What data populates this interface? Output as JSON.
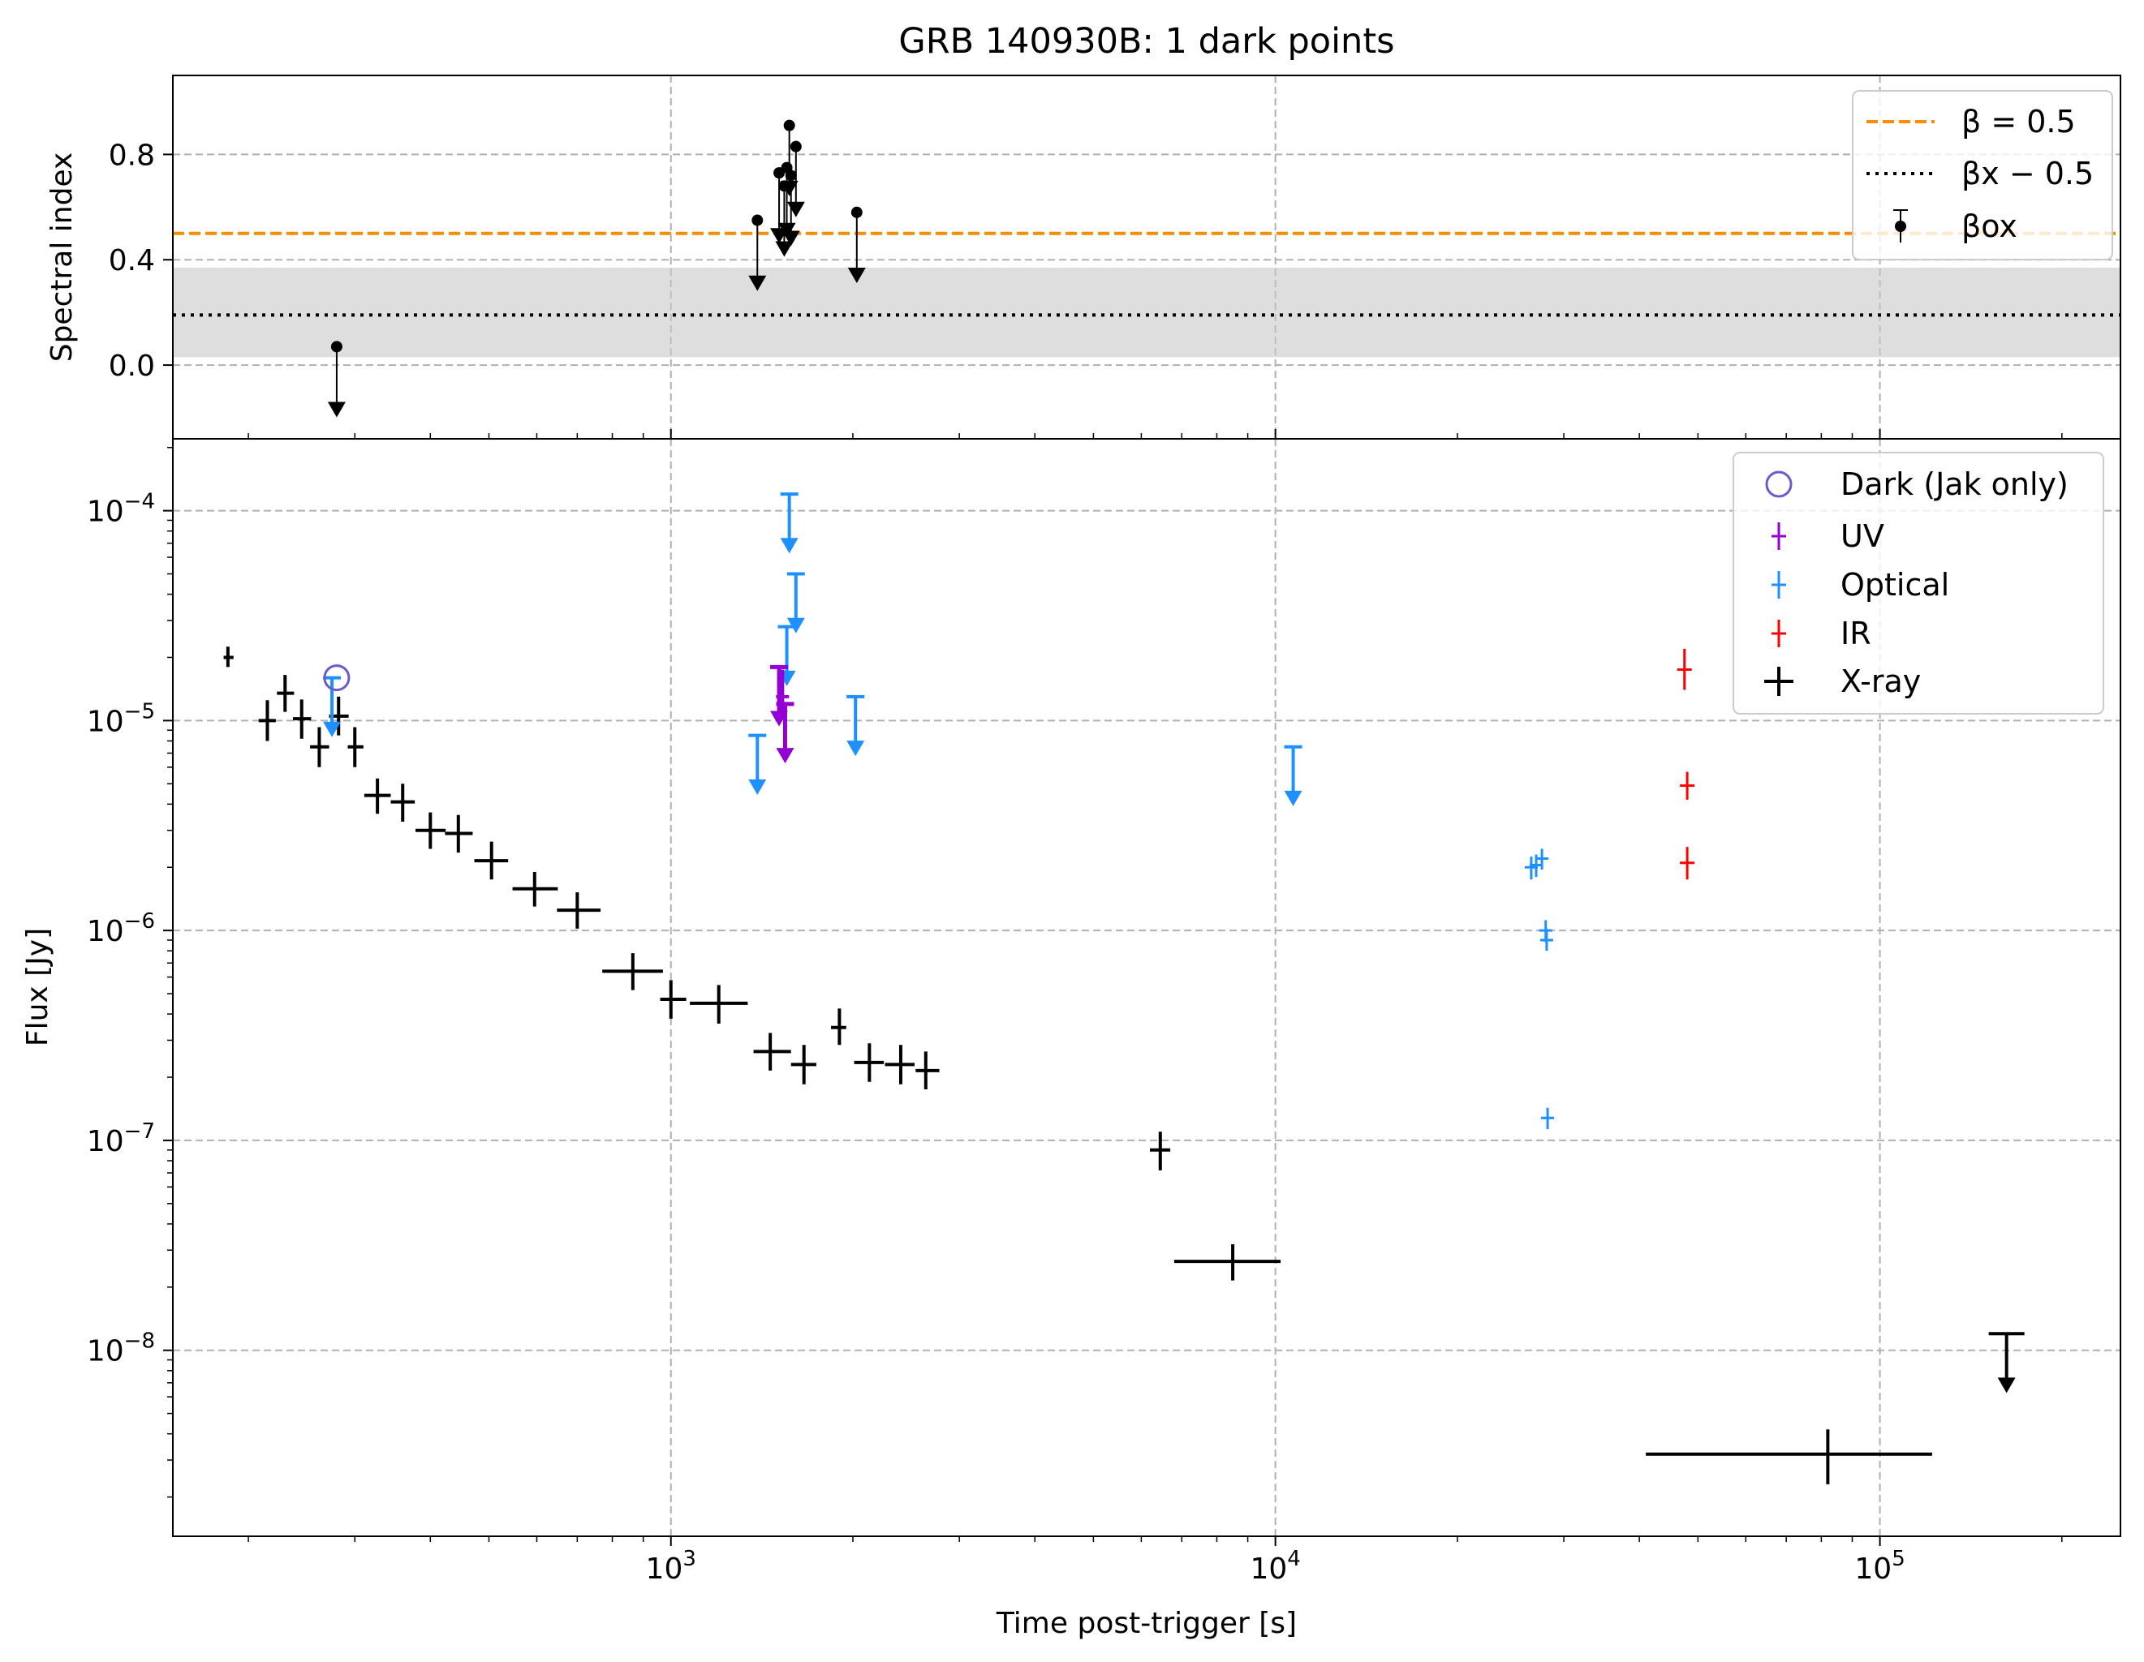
{
  "chart_data": {
    "title": "GRB 140930B: 1 dark points",
    "type": "scatter",
    "xlabel": "Time post-trigger [s]",
    "xscale": "log",
    "xlim": [
      150,
      250000
    ],
    "x_ticks": [
      {
        "label": "10",
        "exp": "3"
      },
      {
        "label": "10",
        "exp": "4"
      },
      {
        "label": "10",
        "exp": "5"
      }
    ],
    "grid": true,
    "top_panel": {
      "ylabel": "Spectral index",
      "ylim": [
        -0.28,
        1.1
      ],
      "y_ticks": [
        "0.0",
        "0.4",
        "0.8"
      ],
      "beta_line": 0.5,
      "beta_x_minus_half": 0.19,
      "beta_x_band": [
        0.03,
        0.37
      ],
      "beta_ox_upper_limits": [
        {
          "x": 280,
          "y": 0.07
        },
        {
          "x": 1390,
          "y": 0.55
        },
        {
          "x": 1510,
          "y": 0.73
        },
        {
          "x": 1540,
          "y": 0.68
        },
        {
          "x": 1555,
          "y": 0.75
        },
        {
          "x": 1570,
          "y": 0.91
        },
        {
          "x": 1580,
          "y": 0.72
        },
        {
          "x": 1610,
          "y": 0.83
        },
        {
          "x": 2030,
          "y": 0.58
        }
      ],
      "legend": [
        "β = 0.5",
        "βx − 0.5",
        "βox"
      ],
      "legend_position": "top-right"
    },
    "bottom_panel": {
      "ylabel": "Flux [Jy]",
      "yscale": "log",
      "ylim": [
        1.3e-09,
        0.00022
      ],
      "y_ticks": [
        {
          "label": "10",
          "exp": "−8"
        },
        {
          "label": "10",
          "exp": "−7"
        },
        {
          "label": "10",
          "exp": "−6"
        },
        {
          "label": "10",
          "exp": "−5"
        },
        {
          "label": "10",
          "exp": "−4"
        }
      ],
      "legend": [
        "Dark (Jak only)",
        "UV",
        "Optical",
        "IR",
        "X-ray"
      ],
      "legend_position": "top-right",
      "colors": {
        "dark": "#6a5acd",
        "uv": "#9400d3",
        "optical": "#1e90ff",
        "ir": "#ff0000",
        "xray": "#000000"
      },
      "dark_points": [
        {
          "x": 280,
          "y": 1.6e-05
        }
      ],
      "xray": [
        {
          "x": 185,
          "y": 2e-05,
          "xlo": 182,
          "xhi": 189,
          "ylo": 1.8e-05,
          "yhi": 2.25e-05
        },
        {
          "x": 215,
          "y": 1e-05,
          "xlo": 208,
          "xhi": 222,
          "ylo": 8e-06,
          "yhi": 1.25e-05
        },
        {
          "x": 230,
          "y": 1.35e-05,
          "xlo": 223,
          "xhi": 238,
          "ylo": 1.1e-05,
          "yhi": 1.65e-05
        },
        {
          "x": 245,
          "y": 1.02e-05,
          "xlo": 237,
          "xhi": 254,
          "ylo": 8.2e-06,
          "yhi": 1.26e-05
        },
        {
          "x": 262,
          "y": 7.5e-06,
          "xlo": 253,
          "xhi": 272,
          "ylo": 6e-06,
          "yhi": 9.3e-06
        },
        {
          "x": 282,
          "y": 1.05e-05,
          "xlo": 272,
          "xhi": 293,
          "ylo": 8.5e-06,
          "yhi": 1.3e-05
        },
        {
          "x": 300,
          "y": 7.5e-06,
          "xlo": 292,
          "xhi": 310,
          "ylo": 6e-06,
          "yhi": 9.3e-06
        },
        {
          "x": 327,
          "y": 4.4e-06,
          "xlo": 311,
          "xhi": 344,
          "ylo": 3.6e-06,
          "yhi": 5.3e-06
        },
        {
          "x": 360,
          "y": 4.1e-06,
          "xlo": 344,
          "xhi": 377,
          "ylo": 3.3e-06,
          "yhi": 5e-06
        },
        {
          "x": 400,
          "y": 3e-06,
          "xlo": 378,
          "xhi": 424,
          "ylo": 2.45e-06,
          "yhi": 3.65e-06
        },
        {
          "x": 445,
          "y": 2.9e-06,
          "xlo": 423,
          "xhi": 470,
          "ylo": 2.35e-06,
          "yhi": 3.55e-06
        },
        {
          "x": 505,
          "y": 2.15e-06,
          "xlo": 473,
          "xhi": 538,
          "ylo": 1.75e-06,
          "yhi": 2.65e-06
        },
        {
          "x": 595,
          "y": 1.58e-06,
          "xlo": 547,
          "xhi": 650,
          "ylo": 1.3e-06,
          "yhi": 1.9e-06
        },
        {
          "x": 700,
          "y": 1.25e-06,
          "xlo": 648,
          "xhi": 765,
          "ylo": 1.02e-06,
          "yhi": 1.52e-06
        },
        {
          "x": 865,
          "y": 6.4e-07,
          "xlo": 770,
          "xhi": 970,
          "ylo": 5.2e-07,
          "yhi": 7.8e-07
        },
        {
          "x": 1000,
          "y": 4.7e-07,
          "xlo": 960,
          "xhi": 1060,
          "ylo": 3.8e-07,
          "yhi": 5.8e-07
        },
        {
          "x": 1200,
          "y": 4.5e-07,
          "xlo": 1075,
          "xhi": 1340,
          "ylo": 3.6e-07,
          "yhi": 5.5e-07
        },
        {
          "x": 1460,
          "y": 2.65e-07,
          "xlo": 1370,
          "xhi": 1580,
          "ylo": 2.15e-07,
          "yhi": 3.25e-07
        },
        {
          "x": 1660,
          "y": 2.3e-07,
          "xlo": 1580,
          "xhi": 1740,
          "ylo": 1.85e-07,
          "yhi": 2.85e-07
        },
        {
          "x": 1900,
          "y": 3.45e-07,
          "xlo": 1840,
          "xhi": 1950,
          "ylo": 2.85e-07,
          "yhi": 4.25e-07
        },
        {
          "x": 2130,
          "y": 2.35e-07,
          "xlo": 2010,
          "xhi": 2250,
          "ylo": 1.9e-07,
          "yhi": 2.9e-07
        },
        {
          "x": 2400,
          "y": 2.3e-07,
          "xlo": 2260,
          "xhi": 2530,
          "ylo": 1.85e-07,
          "yhi": 2.85e-07
        },
        {
          "x": 2640,
          "y": 2.15e-07,
          "xlo": 2540,
          "xhi": 2780,
          "ylo": 1.75e-07,
          "yhi": 2.65e-07
        },
        {
          "x": 6450,
          "y": 9e-08,
          "xlo": 6200,
          "xhi": 6700,
          "ylo": 7.2e-08,
          "yhi": 1.1e-07
        },
        {
          "x": 8500,
          "y": 2.65e-08,
          "xlo": 6800,
          "xhi": 10200,
          "ylo": 2.15e-08,
          "yhi": 3.2e-08
        },
        {
          "x": 82000,
          "y": 3.2e-09,
          "xlo": 41000,
          "xhi": 122000,
          "ylo": 2.3e-09,
          "yhi": 4.2e-09
        }
      ],
      "xray_upper_limits": [
        {
          "x": 162000,
          "y": 1.2e-08
        }
      ],
      "uv": [
        {
          "x": 1530,
          "y": 1.3e-05,
          "ylo": 1.05e-05,
          "yhi": 1.75e-05
        }
      ],
      "uv_upper_limits": [
        {
          "x": 1510,
          "y": 1.8e-05
        },
        {
          "x": 1545,
          "y": 1.2e-05
        }
      ],
      "optical": [
        {
          "x": 26500,
          "y": 2e-06,
          "ylo": 1.75e-06,
          "yhi": 2.25e-06
        },
        {
          "x": 27000,
          "y": 2.05e-06,
          "ylo": 1.8e-06,
          "yhi": 2.3e-06
        },
        {
          "x": 27600,
          "y": 2.2e-06,
          "ylo": 1.95e-06,
          "yhi": 2.45e-06
        },
        {
          "x": 28000,
          "y": 1e-06,
          "ylo": 8.8e-07,
          "yhi": 1.12e-06
        },
        {
          "x": 28100,
          "y": 9e-07,
          "ylo": 8e-07,
          "yhi": 1.02e-06
        },
        {
          "x": 28200,
          "y": 1.28e-07,
          "ylo": 1.13e-07,
          "yhi": 1.43e-07
        }
      ],
      "optical_upper_limits": [
        {
          "x": 275,
          "y": 1.6e-05
        },
        {
          "x": 1390,
          "y": 8.5e-06
        },
        {
          "x": 1555,
          "y": 2.8e-05
        },
        {
          "x": 1570,
          "y": 0.00012
        },
        {
          "x": 1610,
          "y": 5e-05
        },
        {
          "x": 2020,
          "y": 1.3e-05
        },
        {
          "x": 10700,
          "y": 7.5e-06
        }
      ],
      "ir": [
        {
          "x": 47500,
          "y": 1.75e-05,
          "ylo": 1.4e-05,
          "yhi": 2.2e-05
        },
        {
          "x": 48000,
          "y": 4.9e-06,
          "ylo": 4.2e-06,
          "yhi": 5.7e-06
        },
        {
          "x": 48000,
          "y": 2.1e-06,
          "ylo": 1.75e-06,
          "yhi": 2.5e-06
        }
      ]
    }
  }
}
